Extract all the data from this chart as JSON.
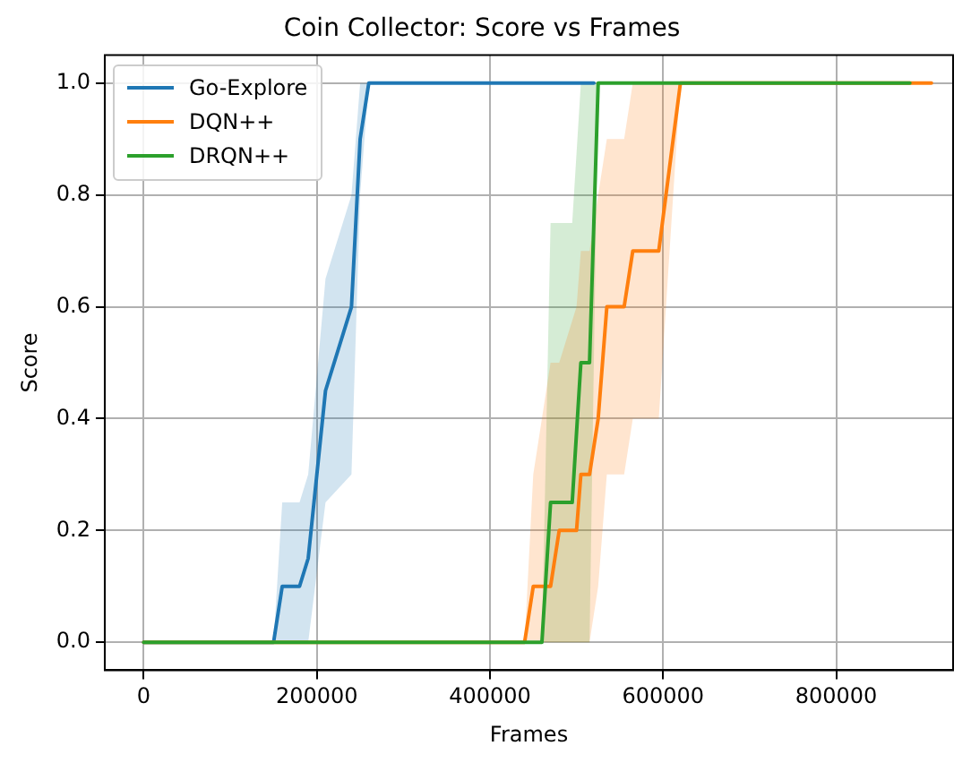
{
  "chart_data": {
    "type": "line",
    "title": "Coin Collector: Score vs Frames",
    "xlabel": "Frames",
    "ylabel": "Score",
    "xlim": [
      -45000,
      935000
    ],
    "xticks": [
      0,
      200000,
      400000,
      600000,
      800000
    ],
    "ylim": [
      -0.05,
      1.05
    ],
    "yticks": [
      {
        "value": 0,
        "label": "0.0"
      },
      {
        "value": 0.2,
        "label": "0.2"
      },
      {
        "value": 0.4,
        "label": "0.4"
      },
      {
        "value": 0.6,
        "label": "0.6"
      },
      {
        "value": 0.8,
        "label": "0.8"
      },
      {
        "value": 1,
        "label": "1.0"
      }
    ],
    "grid": true,
    "legend": "top left",
    "marker": "none",
    "line_style": "solid",
    "series": [
      {
        "name": "Go-Explore",
        "color": "#1f77b4",
        "x": [
          0,
          150000,
          160000,
          180000,
          190000,
          210000,
          240000,
          250000,
          260000,
          520000
        ],
        "values": [
          0,
          0,
          0.1,
          0.1,
          0.15,
          0.45,
          0.6,
          0.9,
          1,
          1
        ],
        "lower": [
          0,
          0,
          0,
          0,
          0,
          0.25,
          0.3,
          0.8,
          1,
          1
        ],
        "upper": [
          0,
          0,
          0.25,
          0.25,
          0.3,
          0.65,
          0.8,
          1,
          1,
          1
        ]
      },
      {
        "name": "DQN++",
        "color": "#ff7f0e",
        "x": [
          0,
          440000,
          450000,
          470000,
          480000,
          500000,
          505000,
          515000,
          525000,
          535000,
          555000,
          565000,
          595000,
          620000,
          910000
        ],
        "values": [
          0,
          0,
          0.1,
          0.1,
          0.2,
          0.2,
          0.3,
          0.3,
          0.4,
          0.6,
          0.6,
          0.7,
          0.7,
          1,
          1
        ],
        "lower": [
          0,
          0,
          0,
          0,
          0,
          0,
          0,
          0,
          0.1,
          0.3,
          0.3,
          0.4,
          0.4,
          1,
          1
        ],
        "upper": [
          0,
          0,
          0.3,
          0.5,
          0.5,
          0.6,
          0.7,
          0.7,
          0.8,
          0.9,
          0.9,
          1,
          1,
          1,
          1
        ]
      },
      {
        "name": "DRQN++",
        "color": "#2ca02c",
        "x": [
          0,
          460000,
          470000,
          495000,
          505000,
          515000,
          525000,
          885000
        ],
        "values": [
          0,
          0,
          0.25,
          0.25,
          0.5,
          0.5,
          1,
          1
        ],
        "lower": [
          0,
          0,
          0,
          0,
          0,
          0,
          1,
          1
        ],
        "upper": [
          0,
          0,
          0.75,
          0.75,
          1,
          1,
          1,
          1
        ]
      }
    ]
  }
}
